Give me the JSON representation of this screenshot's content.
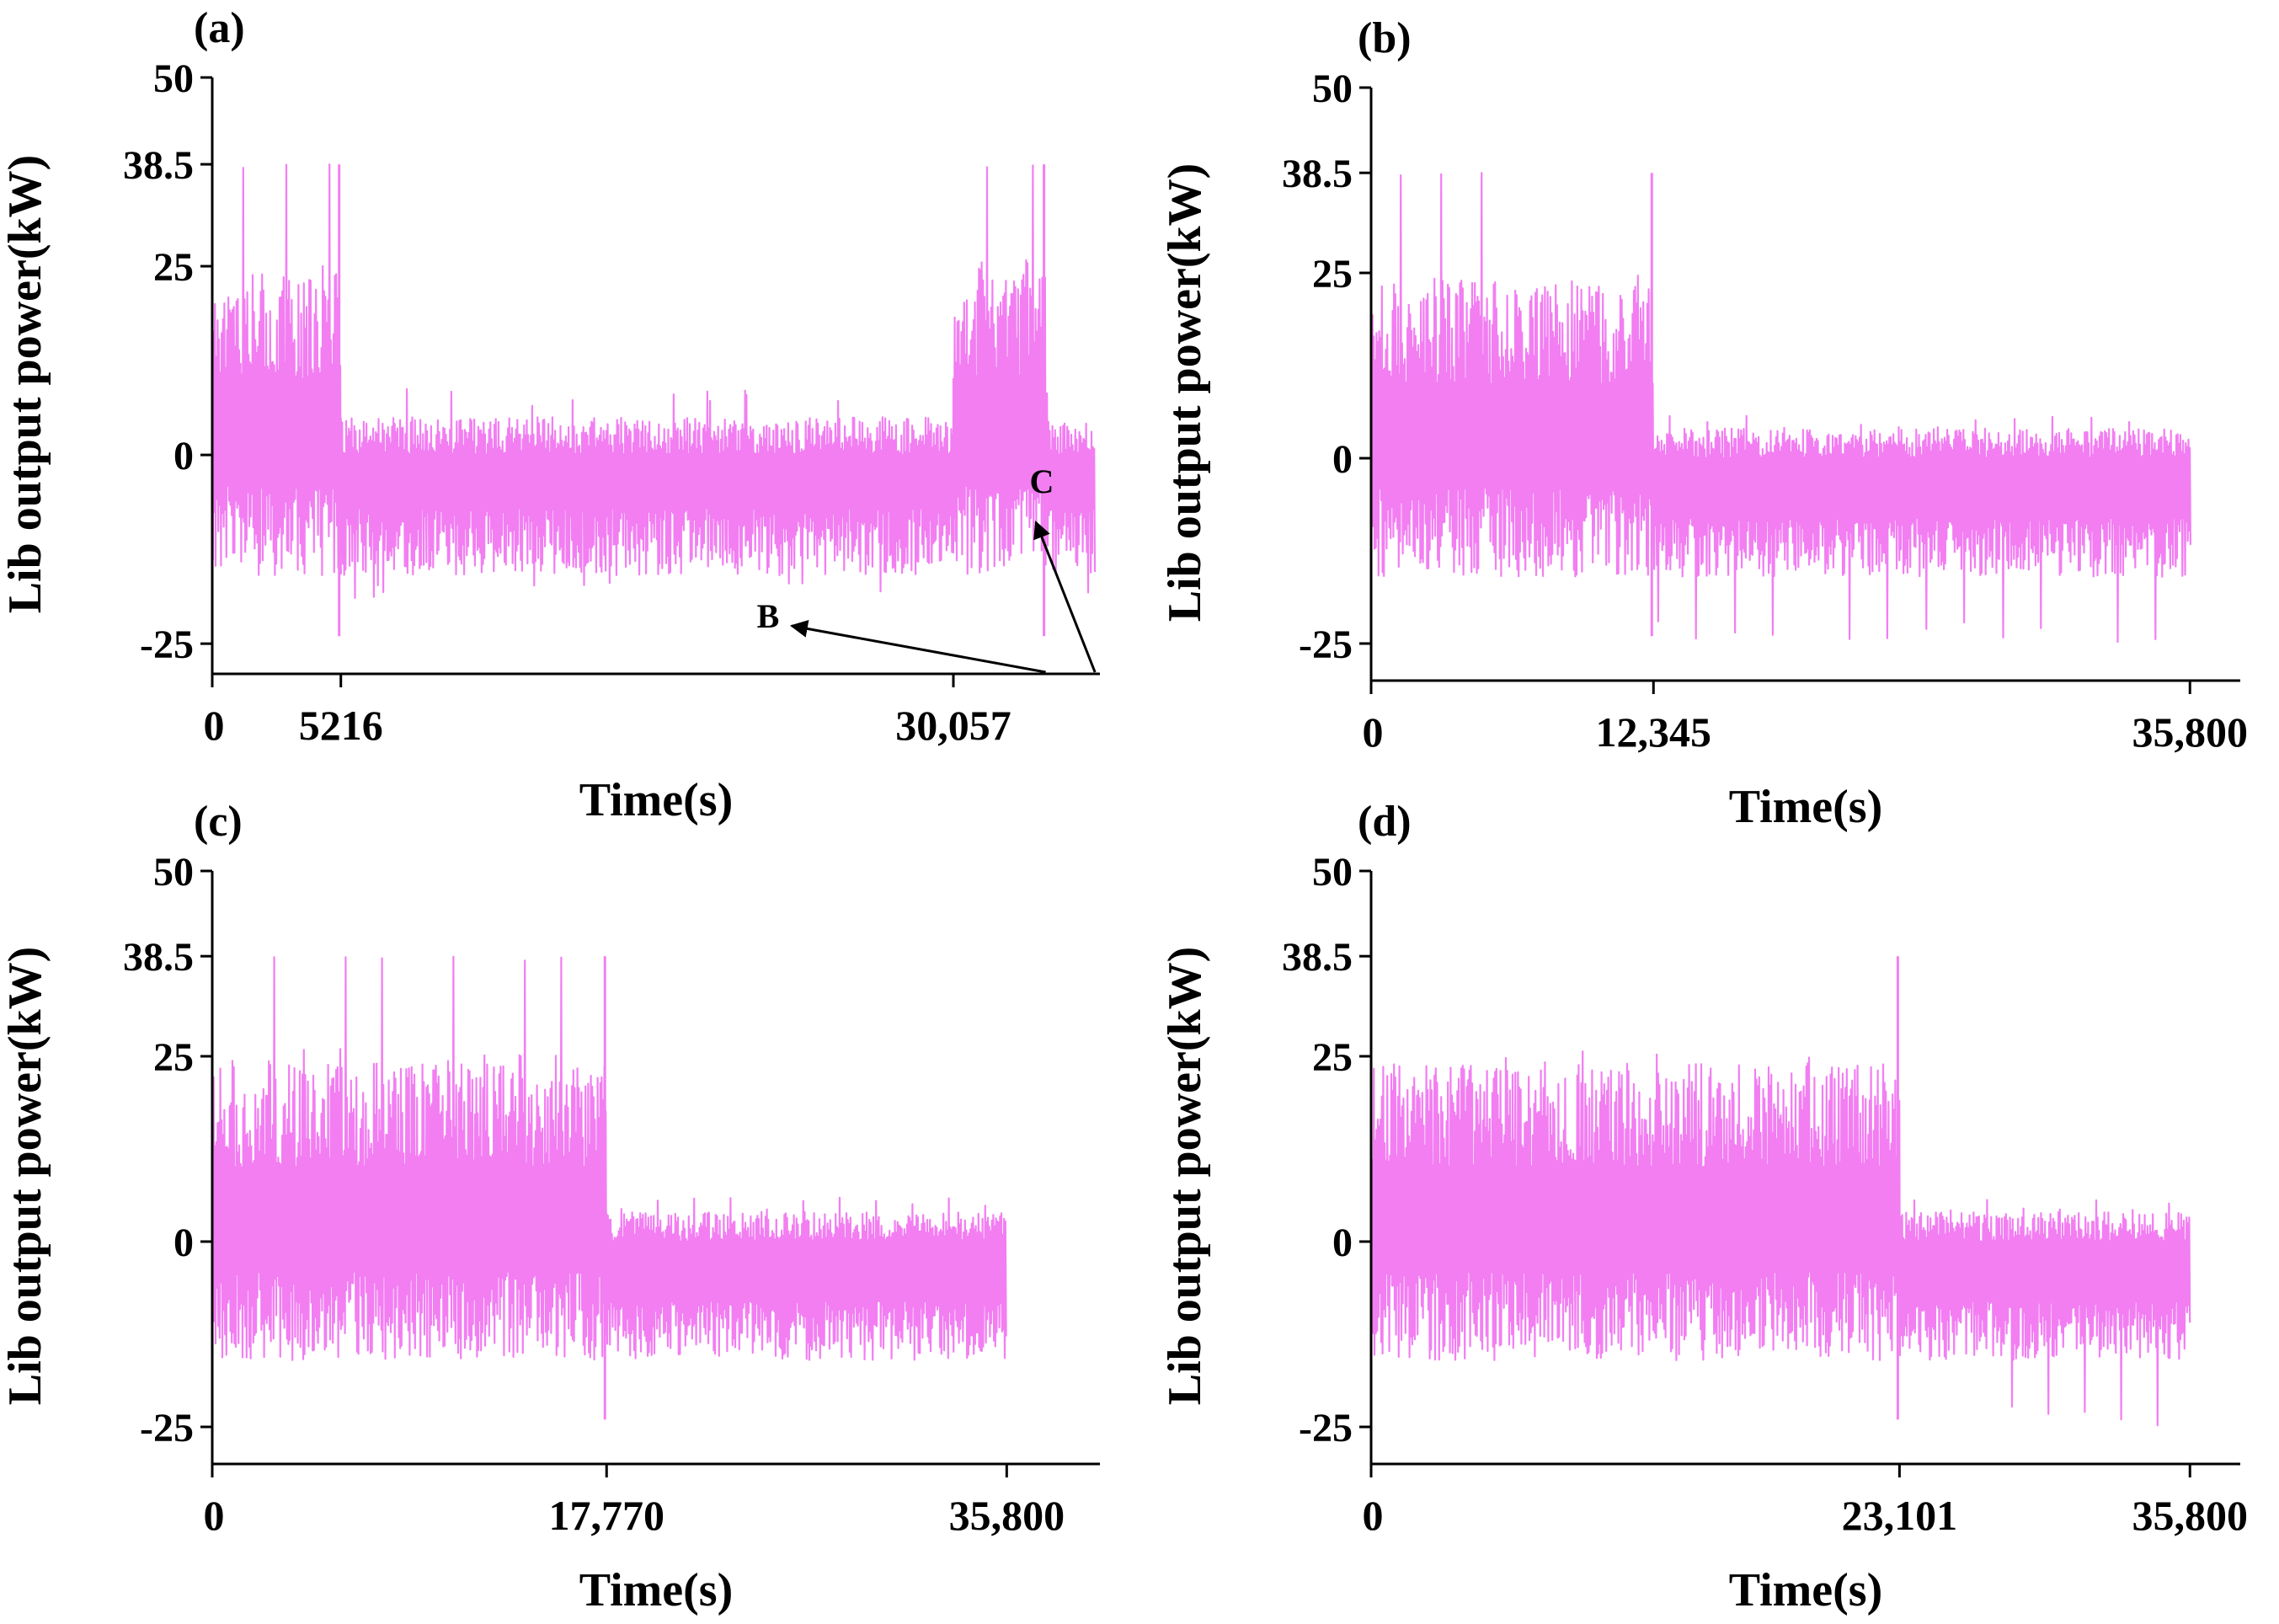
{
  "chart_data": [
    {
      "type": "line",
      "panel_label": "(a)",
      "xlabel": "Time(s)",
      "ylabel": "Lib output power(kW)",
      "ylim": [
        -29,
        50
      ],
      "xlim": [
        0,
        36000
      ],
      "yticks": [
        -25,
        0,
        25,
        38.5,
        50
      ],
      "ytick_labels": [
        "-25",
        "0",
        "25",
        "38.5",
        "50"
      ],
      "xticks": [
        0,
        5216,
        30057
      ],
      "xtick_labels": [
        "0",
        "5216",
        "30,057"
      ],
      "series_color": "#f27ef2",
      "segments": [
        {
          "start": 0,
          "end": 5216,
          "mode": "drive",
          "peak_kW": 38.5
        },
        {
          "start": 5216,
          "end": 30057,
          "mode": "idle"
        },
        {
          "start": 30057,
          "end": 33800,
          "mode": "drive",
          "peak_kW": 38.5
        },
        {
          "start": 33800,
          "end": 35800,
          "mode": "idle"
        }
      ],
      "annotations": [
        {
          "text": "B",
          "target_time": 33800
        },
        {
          "text": "C",
          "target_time": 35800
        }
      ]
    },
    {
      "type": "line",
      "panel_label": "(b)",
      "xlabel": "Time(s)",
      "ylabel": "Lib output power(kW)",
      "ylim": [
        -30,
        50
      ],
      "xlim": [
        0,
        38000
      ],
      "yticks": [
        -25,
        0,
        25,
        38.5,
        50
      ],
      "ytick_labels": [
        "-25",
        "0",
        "25",
        "38.5",
        "50"
      ],
      "xticks": [
        0,
        12345,
        35800
      ],
      "xtick_labels": [
        "0",
        "12,345",
        "35,800"
      ],
      "series_color": "#f27ef2",
      "segments": [
        {
          "start": 0,
          "end": 12345,
          "mode": "drive",
          "peak_kW": 38.5
        },
        {
          "start": 12345,
          "end": 35800,
          "mode": "regen"
        }
      ]
    },
    {
      "type": "line",
      "panel_label": "(c)",
      "xlabel": "Time(s)",
      "ylabel": "Lib output power(kW)",
      "ylim": [
        -30,
        50
      ],
      "xlim": [
        0,
        40000
      ],
      "yticks": [
        -25,
        0,
        25,
        38.5,
        50
      ],
      "ytick_labels": [
        "-25",
        "0",
        "25",
        "38.5",
        "50"
      ],
      "xticks": [
        0,
        17770,
        35800
      ],
      "xtick_labels": [
        "0",
        "17,770",
        "35,800"
      ],
      "series_color": "#f27ef2",
      "segments": [
        {
          "start": 0,
          "end": 17770,
          "mode": "drive",
          "peak_kW": 38.5
        },
        {
          "start": 17770,
          "end": 35800,
          "mode": "regen"
        }
      ]
    },
    {
      "type": "line",
      "panel_label": "(d)",
      "xlabel": "Time(s)",
      "ylabel": "Lib output power(kW)",
      "ylim": [
        -30,
        50
      ],
      "xlim": [
        0,
        38000
      ],
      "yticks": [
        -25,
        0,
        25,
        38.5,
        50
      ],
      "ytick_labels": [
        "-25",
        "0",
        "25",
        "38.5",
        "50"
      ],
      "xticks": [
        0,
        23101,
        35800
      ],
      "xtick_labels": [
        "0",
        "23,101",
        "35,800"
      ],
      "series_color": "#f27ef2",
      "segments": [
        {
          "start": 0,
          "end": 23101,
          "mode": "drive",
          "peak_kW": 38.5
        },
        {
          "start": 23101,
          "end": 35800,
          "mode": "regen"
        }
      ]
    }
  ]
}
